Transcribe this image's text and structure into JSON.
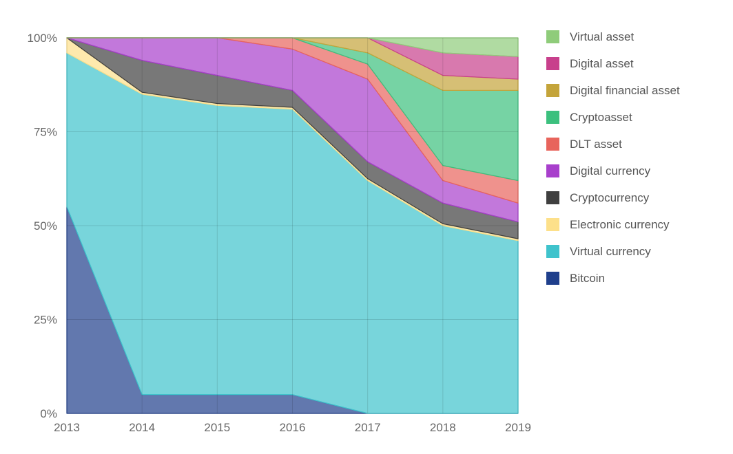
{
  "chart_data": {
    "type": "area",
    "stacked": "percent",
    "title": "",
    "xlabel": "",
    "ylabel": "",
    "x": [
      "2013",
      "2014",
      "2015",
      "2016",
      "2017",
      "2018",
      "2019"
    ],
    "ylim": [
      0,
      100
    ],
    "yticks": [
      "0%",
      "25%",
      "50%",
      "75%",
      "100%"
    ],
    "ytick_values": [
      0,
      25,
      50,
      75,
      100
    ],
    "grid": true,
    "legend_position": "right",
    "series": [
      {
        "name": "Bitcoin",
        "color": "#1f3f8c",
        "values": [
          55,
          5,
          5,
          5,
          0,
          0,
          0
        ]
      },
      {
        "name": "Virtual currency",
        "color": "#3fc3cc",
        "values": [
          41,
          80,
          77,
          76,
          62,
          50,
          46
        ]
      },
      {
        "name": "Electronic currency",
        "color": "#fde08a",
        "values": [
          4,
          0.5,
          0.5,
          0.5,
          0.5,
          0.5,
          0.5
        ]
      },
      {
        "name": "Cryptocurrency",
        "color": "#3f3f3f",
        "values": [
          0,
          8.5,
          7.5,
          4.5,
          4.5,
          5.5,
          4.5
        ]
      },
      {
        "name": "Digital currency",
        "color": "#a83fcc",
        "values": [
          0,
          6,
          10,
          11,
          22,
          6,
          5
        ]
      },
      {
        "name": "DLT asset",
        "color": "#e8645c",
        "values": [
          0,
          0,
          0,
          3,
          4,
          4,
          6
        ]
      },
      {
        "name": "Cryptoasset",
        "color": "#3cc07e",
        "values": [
          0,
          0,
          0,
          0,
          3,
          20,
          24
        ]
      },
      {
        "name": "Digital financial asset",
        "color": "#c4a43a",
        "values": [
          0,
          0,
          0,
          0,
          4,
          4,
          3
        ]
      },
      {
        "name": "Digital asset",
        "color": "#c8408c",
        "values": [
          0,
          0,
          0,
          0,
          0,
          6,
          6
        ]
      },
      {
        "name": "Virtual asset",
        "color": "#8fcc7a",
        "values": [
          0,
          0,
          0,
          0,
          0,
          4,
          5
        ]
      }
    ]
  }
}
